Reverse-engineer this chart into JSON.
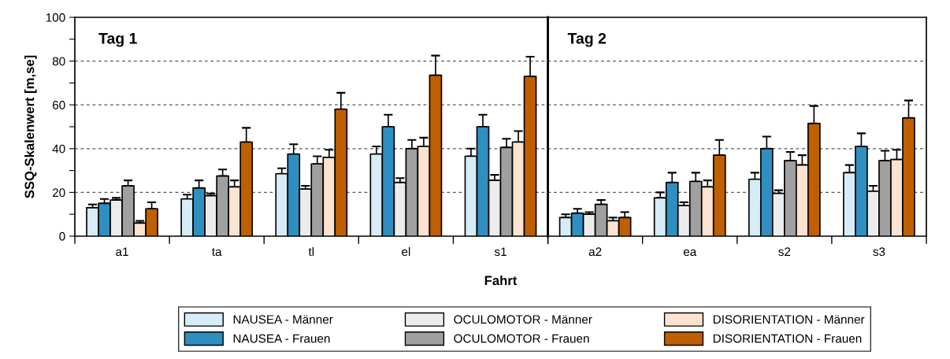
{
  "chart_data": [
    {
      "type": "bar",
      "xlabel": "Fahrt",
      "ylabel": "SSQ-Skalenwert [m,se]",
      "annotations": [
        "Tag 1"
      ],
      "categories": [
        "a1",
        "ta",
        "tl",
        "el",
        "s1"
      ],
      "ylim": [
        0,
        100
      ],
      "yticks": [
        0,
        {
          "value": 10,
          "label": null
        },
        20,
        {
          "value": 30,
          "label": null
        },
        40,
        {
          "value": 50,
          "label": null
        },
        60,
        {
          "value": 70,
          "label": null
        },
        80,
        {
          "value": 90,
          "label": null
        },
        100
      ],
      "grid": "y",
      "legend": "bottom",
      "series": [
        {
          "name": "NAUSEA - Männer",
          "color": "#d6ecf7",
          "values": [
            13,
            17,
            28.5,
            37.5,
            36.5
          ],
          "errors": [
            [
              13,
              14.5
            ],
            [
              17,
              19
            ],
            [
              28.5,
              31
            ],
            [
              37.5,
              41
            ],
            [
              36.5,
              40
            ]
          ]
        },
        {
          "name": "NAUSEA - Frauen",
          "color": "#2e8fc0",
          "values": [
            15,
            22,
            37.5,
            50,
            50
          ],
          "errors": [
            [
              15,
              17
            ],
            [
              22,
              25.5
            ],
            [
              37.5,
              42
            ],
            [
              50,
              55.5
            ],
            [
              50,
              55.5
            ]
          ]
        },
        {
          "name": "OCULOMOTOR - Männer",
          "color": "#ececec",
          "values": [
            16.5,
            18.5,
            21.5,
            24.5,
            25.5
          ],
          "errors": [
            [
              16.5,
              17.5
            ],
            [
              18.5,
              19.5
            ],
            [
              21.5,
              23
            ],
            [
              24.5,
              26.5
            ],
            [
              25.5,
              28
            ]
          ]
        },
        {
          "name": "OCULOMOTOR - Frauen",
          "color": "#a0a0a0",
          "values": [
            23,
            27.5,
            33,
            40,
            40.5
          ],
          "errors": [
            [
              23,
              25.5
            ],
            [
              27.5,
              30.5
            ],
            [
              33,
              36.5
            ],
            [
              40,
              44
            ],
            [
              40.5,
              44.5
            ]
          ]
        },
        {
          "name": "DISORIENTATION - Männer",
          "color": "#fbe3cf",
          "values": [
            6,
            22.5,
            36,
            41,
            43
          ],
          "errors": [
            [
              6,
              7
            ],
            [
              22.5,
              25.5
            ],
            [
              36,
              39.5
            ],
            [
              41,
              45
            ],
            [
              43,
              48
            ]
          ]
        },
        {
          "name": "DISORIENTATION - Frauen",
          "color": "#bf5f00",
          "values": [
            12.5,
            43,
            58,
            73.5,
            73
          ],
          "errors": [
            [
              12.5,
              15.5
            ],
            [
              43,
              49.5
            ],
            [
              58,
              65.5
            ],
            [
              73.5,
              82.5
            ],
            [
              73,
              82
            ]
          ]
        }
      ]
    },
    {
      "type": "bar",
      "annotations": [
        "Tag 2"
      ],
      "categories": [
        "a2",
        "ea",
        "s2",
        "s3"
      ],
      "ylim": [
        0,
        100
      ],
      "yticks": [
        0,
        20,
        40,
        60,
        80,
        100
      ],
      "grid": "y",
      "tick_labels": "x",
      "series": [
        {
          "color": "#d6ecf7",
          "values": [
            8.5,
            17.5,
            26,
            29
          ],
          "errors": [
            [
              8.5,
              10
            ],
            [
              17.5,
              20
            ],
            [
              26,
              29
            ],
            [
              29,
              32.5
            ]
          ]
        },
        {
          "color": "#2e8fc0",
          "values": [
            10.5,
            24.5,
            40,
            41
          ],
          "errors": [
            [
              10.5,
              12.5
            ],
            [
              24.5,
              29
            ],
            [
              40,
              45.5
            ],
            [
              41,
              47
            ]
          ]
        },
        {
          "color": "#ececec",
          "values": [
            10,
            14,
            19.5,
            20.5
          ],
          "errors": [
            [
              10,
              11
            ],
            [
              14,
              15.5
            ],
            [
              19.5,
              21
            ],
            [
              20.5,
              23
            ]
          ]
        },
        {
          "color": "#a0a0a0",
          "values": [
            14.5,
            25,
            34.5,
            34.5
          ],
          "errors": [
            [
              14.5,
              16.5
            ],
            [
              25,
              29
            ],
            [
              34.5,
              38.5
            ],
            [
              34.5,
              39
            ]
          ]
        },
        {
          "color": "#fbe3cf",
          "values": [
            7,
            22.5,
            32.5,
            35
          ],
          "errors": [
            [
              7,
              8.5
            ],
            [
              22.5,
              25.5
            ],
            [
              32.5,
              37
            ],
            [
              35,
              39.5
            ]
          ]
        },
        {
          "color": "#bf5f00",
          "values": [
            8.5,
            37,
            51.5,
            54
          ],
          "errors": [
            [
              8.5,
              11
            ],
            [
              37,
              44
            ],
            [
              51.5,
              59.5
            ],
            [
              54,
              62
            ]
          ]
        }
      ]
    }
  ]
}
